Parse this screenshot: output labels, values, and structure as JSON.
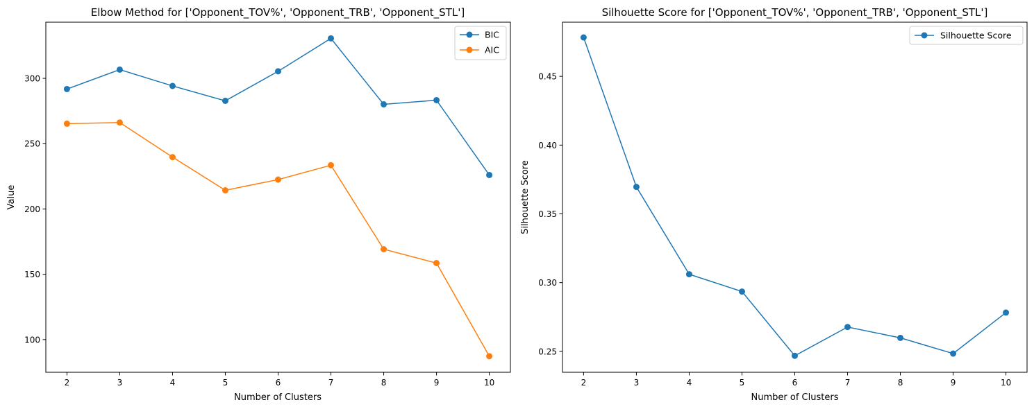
{
  "chart_data": [
    {
      "type": "line",
      "title": "Elbow Method for ['Opponent_TOV%', 'Opponent_TRB', 'Opponent_STL']",
      "xlabel": "Number of Clusters",
      "ylabel": "Value",
      "x": [
        2,
        3,
        4,
        5,
        6,
        7,
        8,
        9,
        10
      ],
      "xticks": [
        2,
        3,
        4,
        5,
        6,
        7,
        8,
        9,
        10
      ],
      "yticks": [
        100,
        150,
        200,
        250,
        300
      ],
      "xlim": [
        1.6,
        10.4
      ],
      "ylim": [
        75,
        343
      ],
      "grid": false,
      "legend": "top-right",
      "series": [
        {
          "name": "BIC",
          "color": "#1f77b4",
          "values": [
            291.8,
            306.7,
            294.2,
            282.8,
            305.4,
            330.6,
            280.1,
            283.3,
            226.0
          ]
        },
        {
          "name": "AIC",
          "color": "#ff7f0e",
          "values": [
            265.3,
            266.2,
            239.7,
            214.3,
            222.5,
            233.5,
            169.2,
            158.6,
            87.3
          ]
        }
      ]
    },
    {
      "type": "line",
      "title": "Silhouette Score for ['Opponent_TOV%', 'Opponent_TRB', 'Opponent_STL']",
      "xlabel": "Number of Clusters",
      "ylabel": "Silhouette Score",
      "x": [
        2,
        3,
        4,
        5,
        6,
        7,
        8,
        9,
        10
      ],
      "xticks": [
        2,
        3,
        4,
        5,
        6,
        7,
        8,
        9,
        10
      ],
      "yticks": [
        0.25,
        0.3,
        0.35,
        0.4,
        0.45
      ],
      "ytick_labels": [
        "0.25",
        "0.30",
        "0.35",
        "0.40",
        "0.45"
      ],
      "xlim": [
        1.6,
        10.4
      ],
      "ylim": [
        0.2348,
        0.4894
      ],
      "grid": false,
      "legend": "top-right",
      "series": [
        {
          "name": "Silhouette Score",
          "color": "#1f77b4",
          "values": [
            0.4783,
            0.3696,
            0.3061,
            0.2935,
            0.2468,
            0.2677,
            0.2598,
            0.2484,
            0.2782
          ]
        }
      ]
    }
  ]
}
